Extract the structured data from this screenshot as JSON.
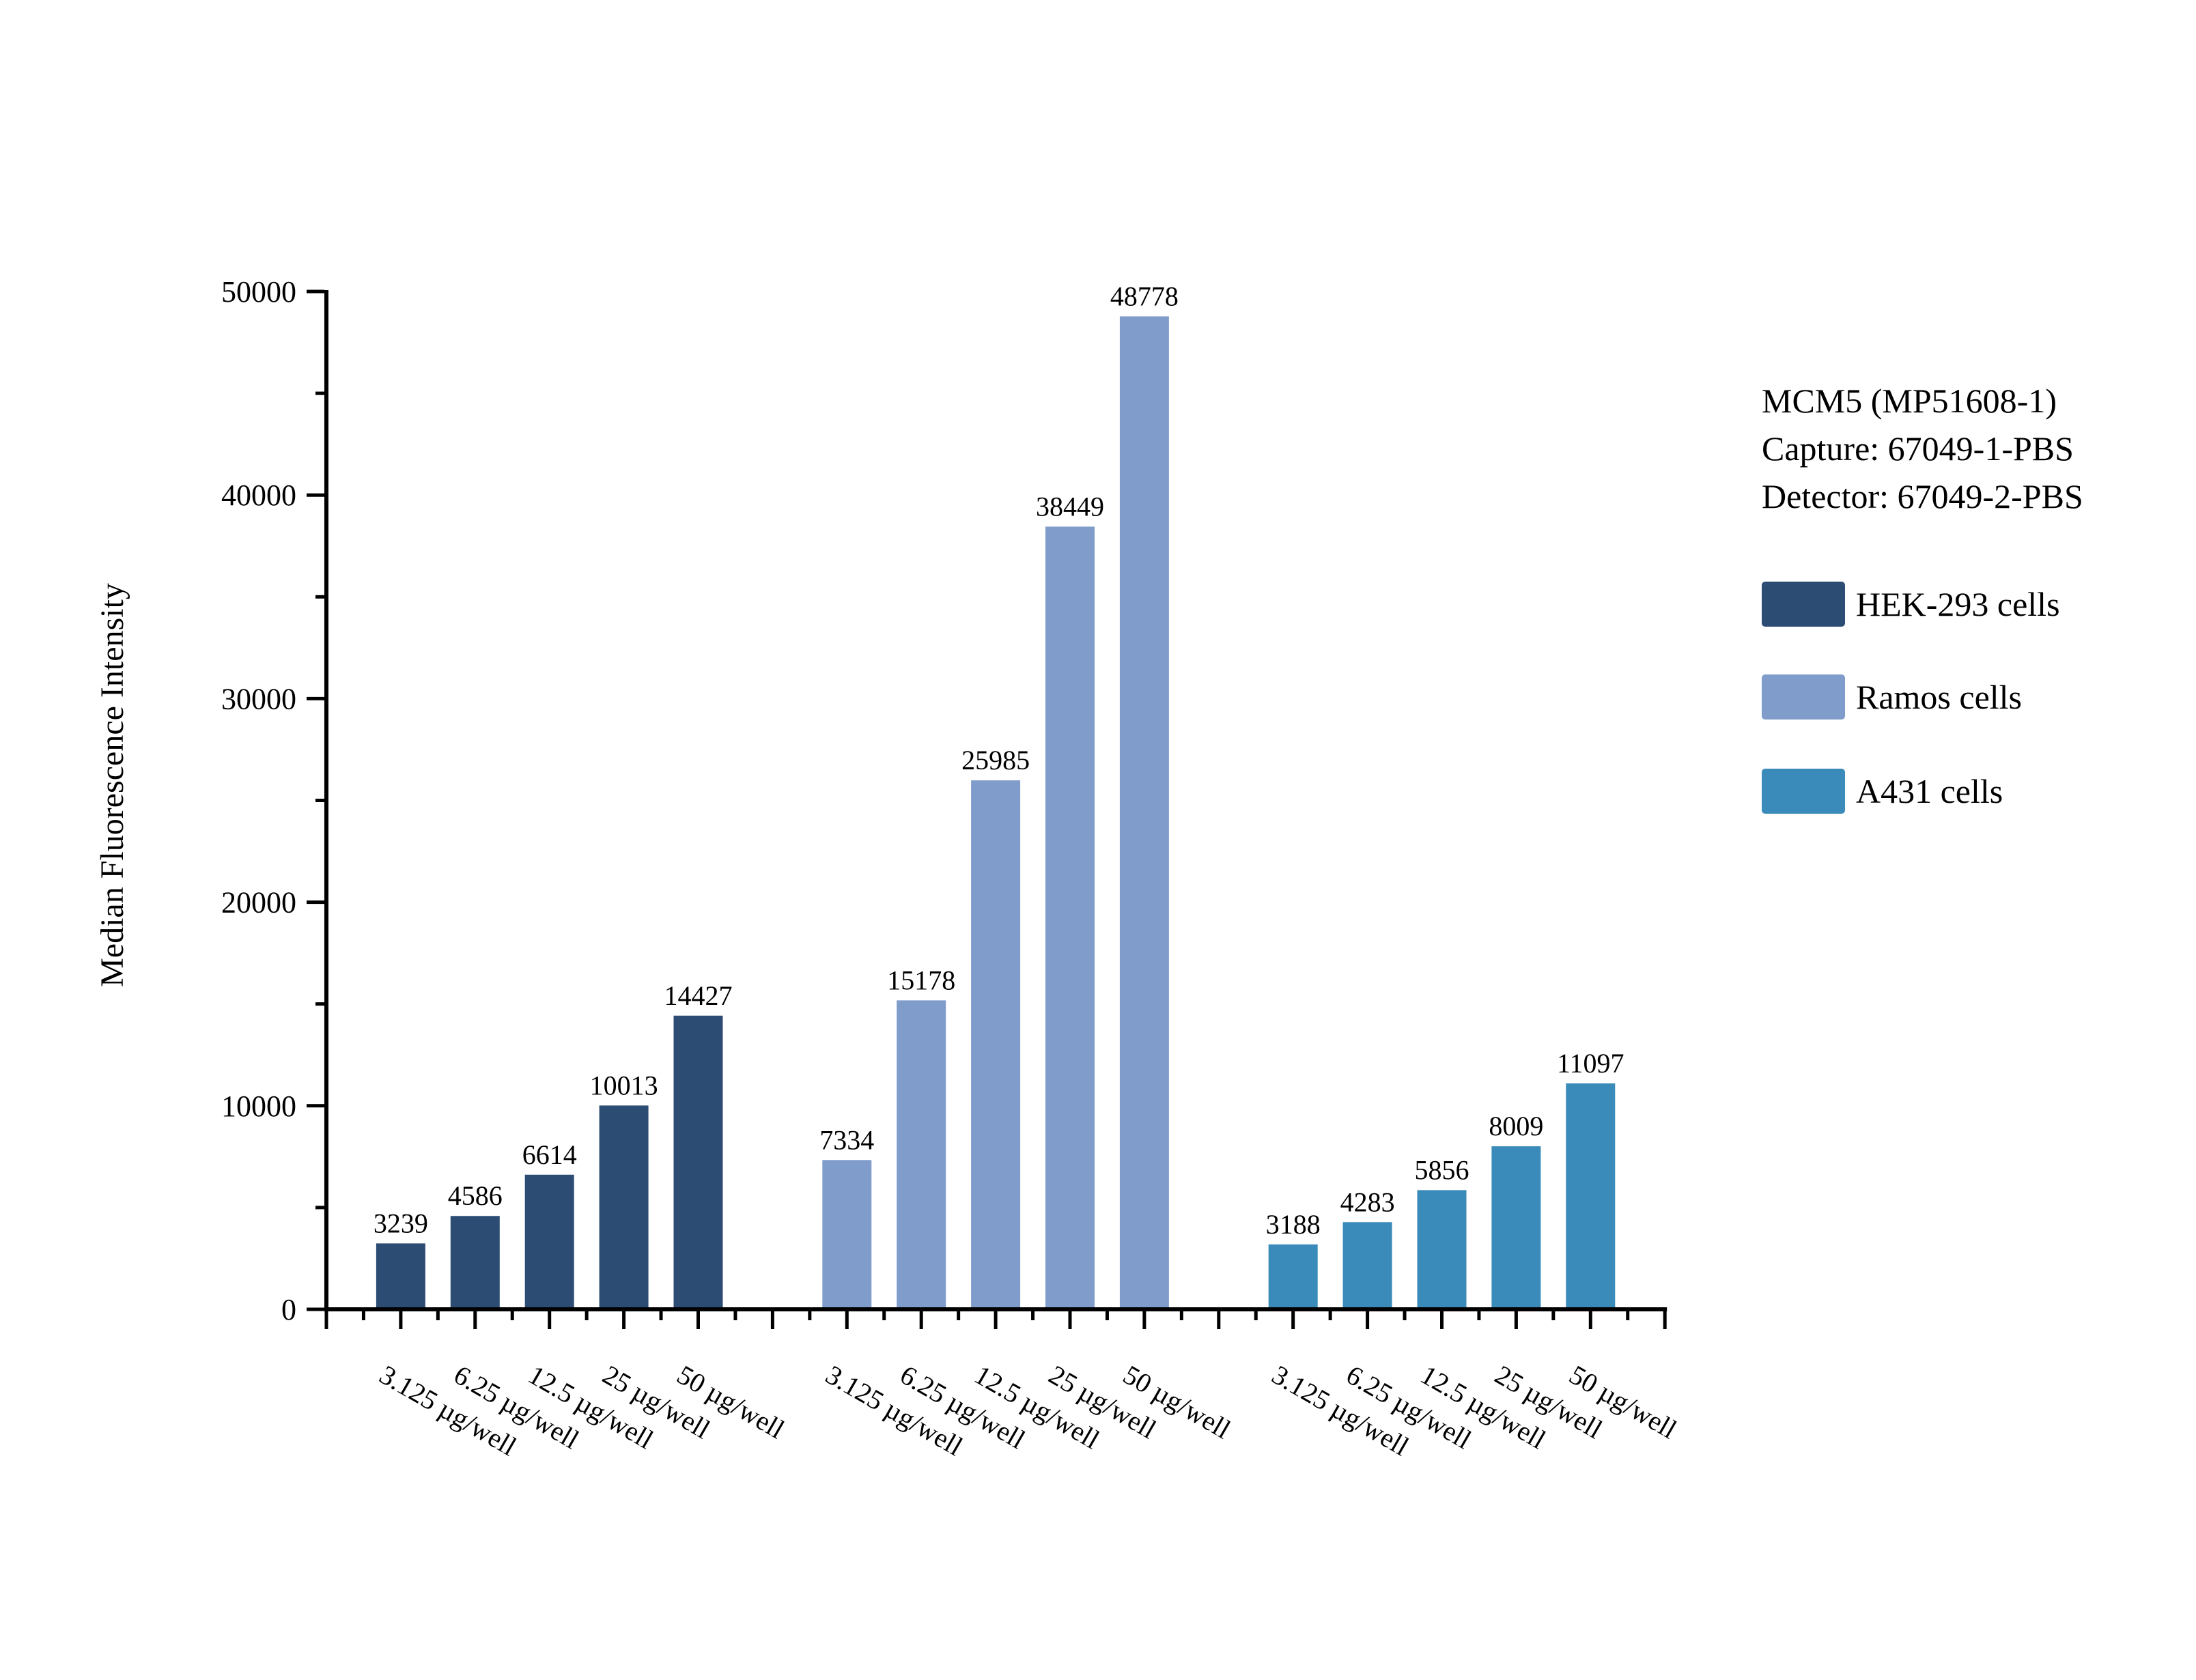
{
  "chart_data": {
    "type": "bar",
    "title": "",
    "xlabel": "",
    "ylabel": "Median Fluorescence Intensity",
    "ylim": [
      0,
      50000
    ],
    "ytick_major": 10000,
    "ytick_minor": 5000,
    "grid": false,
    "legend_position": "right",
    "categories": [
      "3.125 µg/well",
      "6.25 µg/well",
      "12.5 µg/well",
      "25 µg/well",
      "50 µg/well"
    ],
    "series": [
      {
        "name": "HEK-293 cells",
        "color": "#2D4C74",
        "values": [
          3239,
          4586,
          6614,
          10013,
          14427
        ]
      },
      {
        "name": "Ramos cells",
        "color": "#7F9CCB",
        "values": [
          7334,
          15178,
          25985,
          38449,
          48778
        ]
      },
      {
        "name": "A431 cells",
        "color": "#3A8BB9",
        "values": [
          3188,
          4283,
          5856,
          8009,
          11097
        ]
      }
    ]
  },
  "annotation": {
    "line1": "MCM5 (MP51608-1)",
    "line2": "Capture: 67049-1-PBS",
    "line3": "Detector: 67049-2-PBS"
  },
  "axis_color": "#000000",
  "background_color": "#ffffff"
}
